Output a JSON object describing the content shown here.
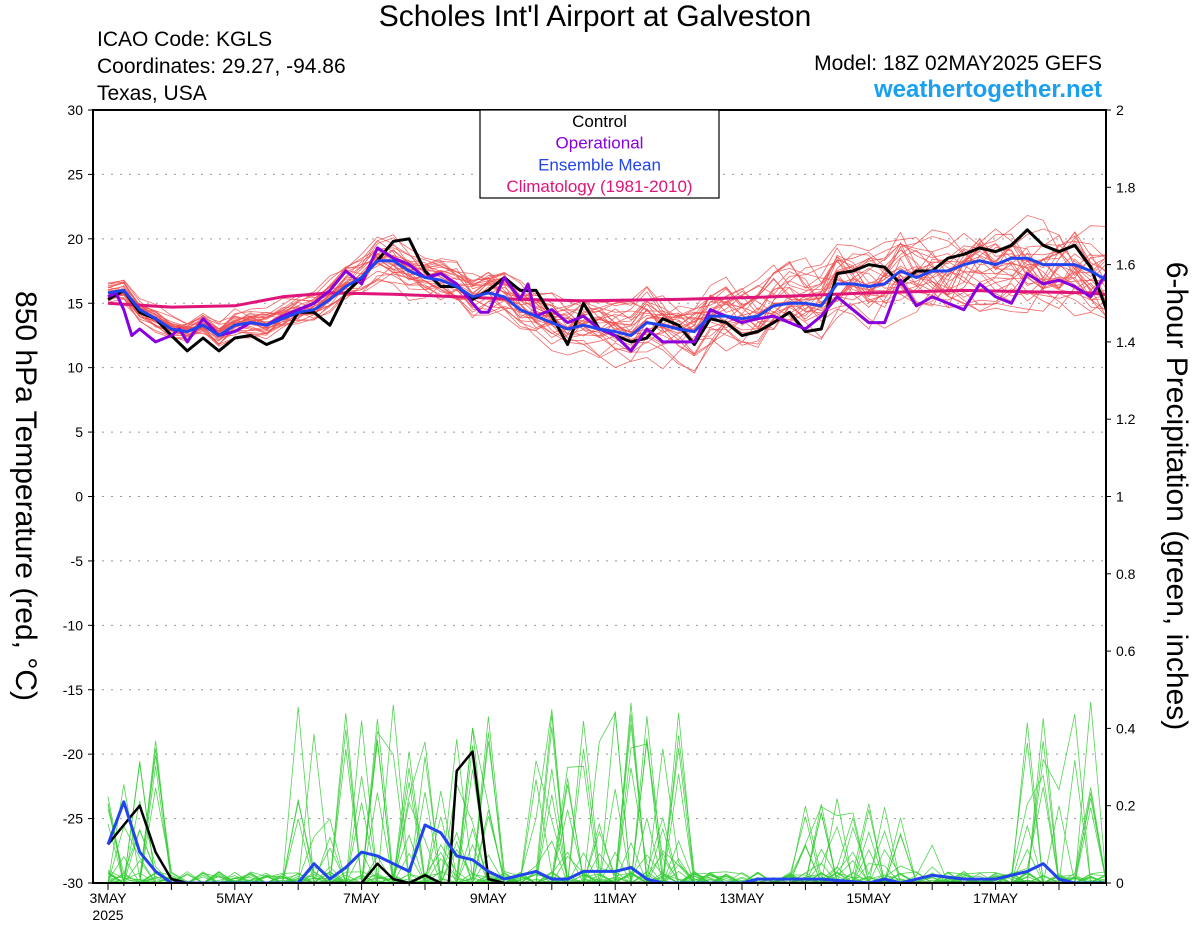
{
  "header": {
    "title": "Scholes Int'l Airport at Galveston",
    "icao": "ICAO Code: KGLS",
    "coords": "Coordinates: 29.27, -94.86",
    "region": "Texas, USA",
    "model": "Model: 18Z 02MAY2025 GEFS",
    "site": "weathertogether.net"
  },
  "colors": {
    "member_temp": "#f05050",
    "member_precip": "#33cc33",
    "control": "#000000",
    "operational": "#8800dd",
    "mean": "#2244ee",
    "climatology": "#e0157a"
  },
  "chart_data": {
    "type": "line",
    "title": "Scholes Int'l Airport at Galveston",
    "ylabel": "850 hPa Temperature (red, °C)",
    "y2label": "6-hour Precipitation (green, inches)",
    "xlim": [
      0,
      64
    ],
    "ylim": [
      -30,
      30
    ],
    "y2lim": [
      0,
      2
    ],
    "x_unit": "6-hour steps from 3MAY 00Z",
    "yticks": [
      "30",
      "25",
      "20",
      "15",
      "10",
      "5",
      "0",
      "-5",
      "-10",
      "-15",
      "-20",
      "-25",
      "-30"
    ],
    "y2ticks": [
      "2",
      "1.8",
      "1.6",
      "1.4",
      "1.2",
      "1",
      "0.8",
      "0.6",
      "0.4",
      "0.2",
      "0"
    ],
    "xticks": [
      {
        "x": 0,
        "label": "3MAY",
        "sub": "2025"
      },
      {
        "x": 8,
        "label": "5MAY",
        "sub": ""
      },
      {
        "x": 16,
        "label": "7MAY",
        "sub": ""
      },
      {
        "x": 24,
        "label": "9MAY",
        "sub": ""
      },
      {
        "x": 32,
        "label": "11MAY",
        "sub": ""
      },
      {
        "x": 40,
        "label": "13MAY",
        "sub": ""
      },
      {
        "x": 48,
        "label": "15MAY",
        "sub": ""
      },
      {
        "x": 56,
        "label": "17MAY",
        "sub": ""
      }
    ],
    "legend": {
      "position": "top-center",
      "items": [
        {
          "label": "Control",
          "color": "#000000"
        },
        {
          "label": "Operational",
          "color": "#8800dd"
        },
        {
          "label": "Ensemble Mean",
          "color": "#2244ee"
        },
        {
          "label": "Climatology (1981-2010)",
          "color": "#e0157a"
        }
      ]
    },
    "temperature": {
      "control": [
        [
          0,
          15.3
        ],
        [
          1,
          16
        ],
        [
          2,
          14.3
        ],
        [
          3,
          13.8
        ],
        [
          4,
          12.5
        ],
        [
          5,
          11.3
        ],
        [
          6,
          12.3
        ],
        [
          7,
          11.3
        ],
        [
          8,
          12.3
        ],
        [
          9,
          12.5
        ],
        [
          10,
          11.8
        ],
        [
          11,
          12.3
        ],
        [
          12,
          14.3
        ],
        [
          13,
          14.3
        ],
        [
          14,
          13.3
        ],
        [
          15,
          15.8
        ],
        [
          16,
          17
        ],
        [
          17,
          18.3
        ],
        [
          18,
          19.8
        ],
        [
          19,
          20
        ],
        [
          20,
          17.5
        ],
        [
          21,
          16.3
        ],
        [
          22,
          16.3
        ],
        [
          23,
          15.3
        ],
        [
          24,
          16
        ],
        [
          25,
          17
        ],
        [
          26,
          16
        ],
        [
          27,
          16
        ],
        [
          28,
          14
        ],
        [
          29,
          11.8
        ],
        [
          30,
          15
        ],
        [
          31,
          13
        ],
        [
          32,
          12.5
        ],
        [
          33,
          12
        ],
        [
          34,
          12.3
        ],
        [
          35,
          13.8
        ],
        [
          36,
          13.3
        ],
        [
          37,
          11.8
        ],
        [
          38,
          13.8
        ],
        [
          39,
          13.5
        ],
        [
          40,
          12.5
        ],
        [
          41,
          12.8
        ],
        [
          42,
          13.5
        ],
        [
          43,
          14.3
        ],
        [
          44,
          12.8
        ],
        [
          45,
          13
        ],
        [
          46,
          17.3
        ],
        [
          47,
          17.5
        ],
        [
          48,
          18
        ],
        [
          49,
          17.8
        ],
        [
          50,
          16.5
        ],
        [
          51,
          17.5
        ],
        [
          52,
          17.5
        ],
        [
          53,
          18.5
        ],
        [
          54,
          18.8
        ],
        [
          55,
          19.3
        ],
        [
          56,
          19
        ],
        [
          57,
          19.5
        ],
        [
          58,
          20.7
        ],
        [
          59,
          19.5
        ],
        [
          60,
          19
        ],
        [
          61,
          19.5
        ],
        [
          62,
          17.8
        ],
        [
          63,
          14.5
        ]
      ],
      "operational": [
        [
          0,
          15.5
        ],
        [
          0.5,
          15.8
        ],
        [
          1,
          14.5
        ],
        [
          1.5,
          12.5
        ],
        [
          2,
          13
        ],
        [
          3,
          12
        ],
        [
          4,
          12.5
        ],
        [
          4.5,
          13
        ],
        [
          5,
          12
        ],
        [
          6,
          13.8
        ],
        [
          7,
          12.5
        ],
        [
          8,
          12.8
        ],
        [
          9,
          13.5
        ],
        [
          10,
          13.3
        ],
        [
          11,
          14
        ],
        [
          12,
          14.5
        ],
        [
          13,
          15
        ],
        [
          14,
          16
        ],
        [
          15,
          17.5
        ],
        [
          16,
          16.5
        ],
        [
          17,
          19.3
        ],
        [
          18,
          18.5
        ],
        [
          19,
          18
        ],
        [
          20,
          17
        ],
        [
          21,
          17.3
        ],
        [
          22,
          16.5
        ],
        [
          23,
          15
        ],
        [
          23.5,
          14.3
        ],
        [
          24,
          14.3
        ],
        [
          25,
          17
        ],
        [
          26,
          15.3
        ],
        [
          26.5,
          16.5
        ],
        [
          27,
          14
        ],
        [
          28,
          14.5
        ],
        [
          29,
          13.5
        ],
        [
          30,
          14
        ],
        [
          31,
          13
        ],
        [
          32,
          12.5
        ],
        [
          33,
          11.3
        ],
        [
          34,
          13
        ],
        [
          35,
          12
        ],
        [
          36,
          12
        ],
        [
          37,
          12
        ],
        [
          38,
          14.5
        ],
        [
          39,
          14
        ],
        [
          40,
          13.5
        ],
        [
          41,
          13.8
        ],
        [
          42,
          14
        ],
        [
          43,
          13.5
        ],
        [
          44,
          13
        ],
        [
          45,
          14
        ],
        [
          46,
          15.5
        ],
        [
          47,
          14.5
        ],
        [
          48,
          13.5
        ],
        [
          49,
          13.5
        ],
        [
          50,
          16.8
        ],
        [
          51,
          14.8
        ],
        [
          52,
          15.5
        ],
        [
          53,
          15
        ],
        [
          54,
          14.5
        ],
        [
          55,
          16.5
        ],
        [
          56,
          15.5
        ],
        [
          57,
          15
        ],
        [
          58,
          17.3
        ],
        [
          59,
          16.5
        ],
        [
          60,
          16.8
        ],
        [
          61,
          16.3
        ],
        [
          62,
          15.5
        ],
        [
          63,
          17.3
        ],
        [
          64,
          16.5
        ],
        [
          65,
          17.3
        ],
        [
          66,
          16.8
        ],
        [
          67,
          15.3
        ]
      ],
      "mean": [
        [
          0,
          15.8
        ],
        [
          1,
          16
        ],
        [
          2,
          14.5
        ],
        [
          3,
          13.8
        ],
        [
          4,
          13
        ],
        [
          5,
          12.8
        ],
        [
          6,
          13.3
        ],
        [
          7,
          12.5
        ],
        [
          8,
          13.3
        ],
        [
          9,
          13.5
        ],
        [
          10,
          13.3
        ],
        [
          11,
          13.8
        ],
        [
          12,
          14.3
        ],
        [
          13,
          14.5
        ],
        [
          14,
          15.3
        ],
        [
          15,
          16.3
        ],
        [
          16,
          17
        ],
        [
          17,
          18.3
        ],
        [
          18,
          18.3
        ],
        [
          19,
          17.5
        ],
        [
          20,
          17
        ],
        [
          21,
          16.8
        ],
        [
          22,
          16.3
        ],
        [
          23,
          15.5
        ],
        [
          24,
          15.8
        ],
        [
          25,
          15.5
        ],
        [
          26,
          14.5
        ],
        [
          27,
          14
        ],
        [
          28,
          13.5
        ],
        [
          29,
          13
        ],
        [
          30,
          13.3
        ],
        [
          31,
          13
        ],
        [
          32,
          12.8
        ],
        [
          33,
          12.5
        ],
        [
          34,
          13.5
        ],
        [
          35,
          13.3
        ],
        [
          36,
          13
        ],
        [
          37,
          12.8
        ],
        [
          38,
          14
        ],
        [
          39,
          14
        ],
        [
          40,
          13.8
        ],
        [
          41,
          14
        ],
        [
          42,
          14.8
        ],
        [
          43,
          15
        ],
        [
          44,
          15
        ],
        [
          45,
          14.8
        ],
        [
          46,
          16.5
        ],
        [
          47,
          16.5
        ],
        [
          48,
          16.3
        ],
        [
          49,
          16.5
        ],
        [
          50,
          17.5
        ],
        [
          51,
          17
        ],
        [
          52,
          17.5
        ],
        [
          53,
          17.5
        ],
        [
          54,
          18
        ],
        [
          55,
          18.3
        ],
        [
          56,
          18
        ],
        [
          57,
          18.5
        ],
        [
          58,
          18.5
        ],
        [
          59,
          18
        ],
        [
          60,
          18
        ],
        [
          61,
          18
        ],
        [
          62,
          17.5
        ],
        [
          63,
          16.8
        ]
      ],
      "climatology": [
        [
          0,
          15
        ],
        [
          4,
          14.7
        ],
        [
          8,
          14.8
        ],
        [
          11,
          15.5
        ],
        [
          14,
          15.8
        ],
        [
          18,
          15.7
        ],
        [
          22,
          15.5
        ],
        [
          26,
          15.3
        ],
        [
          30,
          15.2
        ],
        [
          36,
          15.3
        ],
        [
          42,
          15.5
        ],
        [
          48,
          15.8
        ],
        [
          54,
          16
        ],
        [
          58,
          15.9
        ],
        [
          62,
          15.8
        ],
        [
          64,
          15.5
        ]
      ]
    },
    "precipitation": {
      "control": [
        [
          0,
          0.1
        ],
        [
          1,
          0.15
        ],
        [
          2,
          0.2
        ],
        [
          3,
          0.08
        ],
        [
          4,
          0.01
        ],
        [
          5,
          0
        ],
        [
          12,
          0
        ],
        [
          16,
          0
        ],
        [
          17,
          0.05
        ],
        [
          18,
          0.01
        ],
        [
          19,
          0
        ],
        [
          20,
          0.02
        ],
        [
          21,
          0
        ],
        [
          21.5,
          0
        ],
        [
          22,
          0.29
        ],
        [
          23,
          0.34
        ],
        [
          24,
          0.01
        ],
        [
          25,
          0
        ],
        [
          64,
          0
        ]
      ],
      "mean": [
        [
          0,
          0.1
        ],
        [
          1,
          0.21
        ],
        [
          2,
          0.08
        ],
        [
          3,
          0.03
        ],
        [
          4,
          0
        ],
        [
          12,
          0
        ],
        [
          13,
          0.05
        ],
        [
          14,
          0.01
        ],
        [
          15,
          0.04
        ],
        [
          16,
          0.08
        ],
        [
          17,
          0.07
        ],
        [
          18,
          0.05
        ],
        [
          19,
          0.03
        ],
        [
          20,
          0.15
        ],
        [
          21,
          0.13
        ],
        [
          22,
          0.07
        ],
        [
          23,
          0.06
        ],
        [
          24,
          0.03
        ],
        [
          25,
          0.01
        ],
        [
          26,
          0.02
        ],
        [
          27,
          0.03
        ],
        [
          28,
          0.01
        ],
        [
          29,
          0.01
        ],
        [
          30,
          0.03
        ],
        [
          31,
          0.03
        ],
        [
          32,
          0.03
        ],
        [
          33,
          0.04
        ],
        [
          34,
          0.01
        ],
        [
          35,
          0
        ],
        [
          40,
          0
        ],
        [
          41,
          0.01
        ],
        [
          45,
          0.01
        ],
        [
          48,
          0
        ],
        [
          49,
          0.01
        ],
        [
          50,
          0
        ],
        [
          52,
          0.02
        ],
        [
          54,
          0.01
        ],
        [
          56,
          0.01
        ],
        [
          58,
          0.03
        ],
        [
          59,
          0.05
        ],
        [
          60,
          0.01
        ],
        [
          61,
          0
        ],
        [
          64,
          0
        ]
      ]
    }
  }
}
